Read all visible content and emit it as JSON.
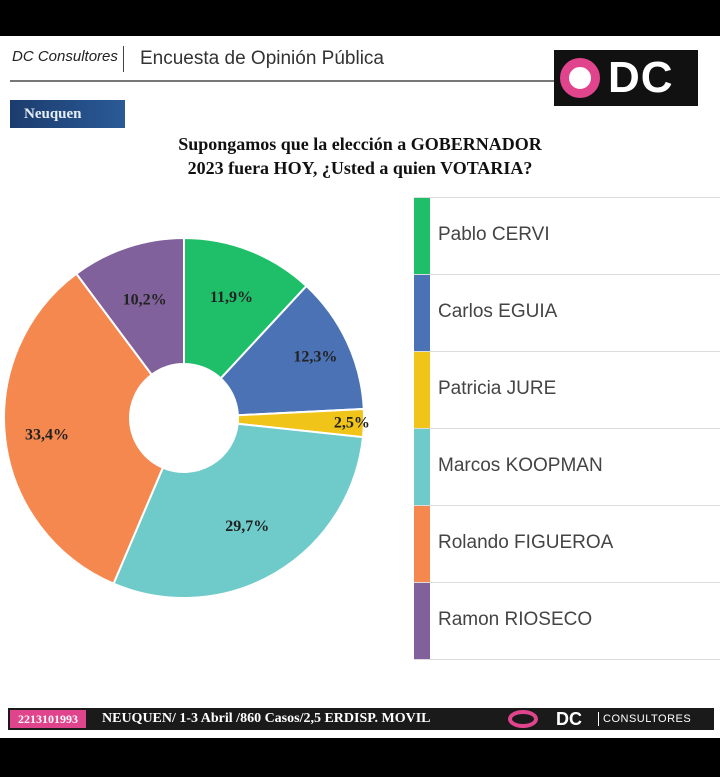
{
  "header": {
    "brand": "DC Consultores",
    "survey_title": "Encuesta de Opinión Pública",
    "logo_text": "DC"
  },
  "region_tab": "Neuquen",
  "question": {
    "line1": "Supongamos que la elección a GOBERNADOR",
    "line2": "2023 fuera HOY, ¿Usted a quien VOTARIA?"
  },
  "chart_data": {
    "type": "pie",
    "variant": "donut",
    "title": "Supongamos que la elección a GOBERNADOR 2023 fuera HOY, ¿Usted a quien VOTARIA?",
    "categories": [
      "Pablo CERVI",
      "Carlos EGUIA",
      "Patricia JURE",
      "Marcos KOOPMAN",
      "Rolando FIGUEROA",
      "Ramon RIOSECO"
    ],
    "values": [
      11.9,
      12.3,
      2.5,
      29.7,
      33.4,
      10.2
    ],
    "labels": [
      "11,9%",
      "12,3%",
      "2,5%",
      "29,7%",
      "33,4%",
      "10,2%"
    ],
    "colors": [
      "#1fbf6a",
      "#4a72b5",
      "#f0c419",
      "#6ecbca",
      "#f5884f",
      "#80619b"
    ],
    "legend_position": "right"
  },
  "footer": {
    "phone": "2213101993",
    "details": "NEUQUEN/ 1-3 Abril /860 Casos/2,5  ERDISP. MOVIL",
    "logo_text": "DC",
    "consultores": "CONSULTORES"
  }
}
